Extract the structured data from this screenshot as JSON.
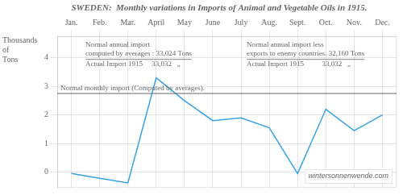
{
  "chart_data": {
    "type": "line",
    "title": "SWEDEN:  Monthly variations in Imports of Animal and Vegetable Oils in 1915.",
    "ylabel": [
      "Thousands",
      "of",
      "Tons"
    ],
    "categories": [
      "Jan.",
      "Feb.",
      "Mar.",
      "April",
      "May",
      "June",
      "July",
      "Aug.",
      "Sept.",
      "Oct.",
      "Nov.",
      "Dec."
    ],
    "values": [
      -0.05,
      -0.22,
      -0.38,
      3.3,
      2.5,
      1.8,
      1.9,
      1.55,
      -0.05,
      2.2,
      1.45,
      2.0
    ],
    "hline": {
      "value": 2.752,
      "label": "Normal monthly import (Computed by averages)."
    },
    "annotations": [
      [
        "Normal annual import",
        "computed by averages : 33,024 Tons",
        "Actual Import 1915     33,032   „"
      ],
      [
        "Normal annual import less",
        "exports to enemy countries. 32,160 Tons",
        "Actual Import 1915          33,032   „"
      ]
    ],
    "watermark": "wintersonnenwende.com",
    "ylim": [
      -0.55,
      4.75
    ],
    "yticks": [
      0,
      1,
      2,
      3,
      4
    ],
    "grid": true
  }
}
